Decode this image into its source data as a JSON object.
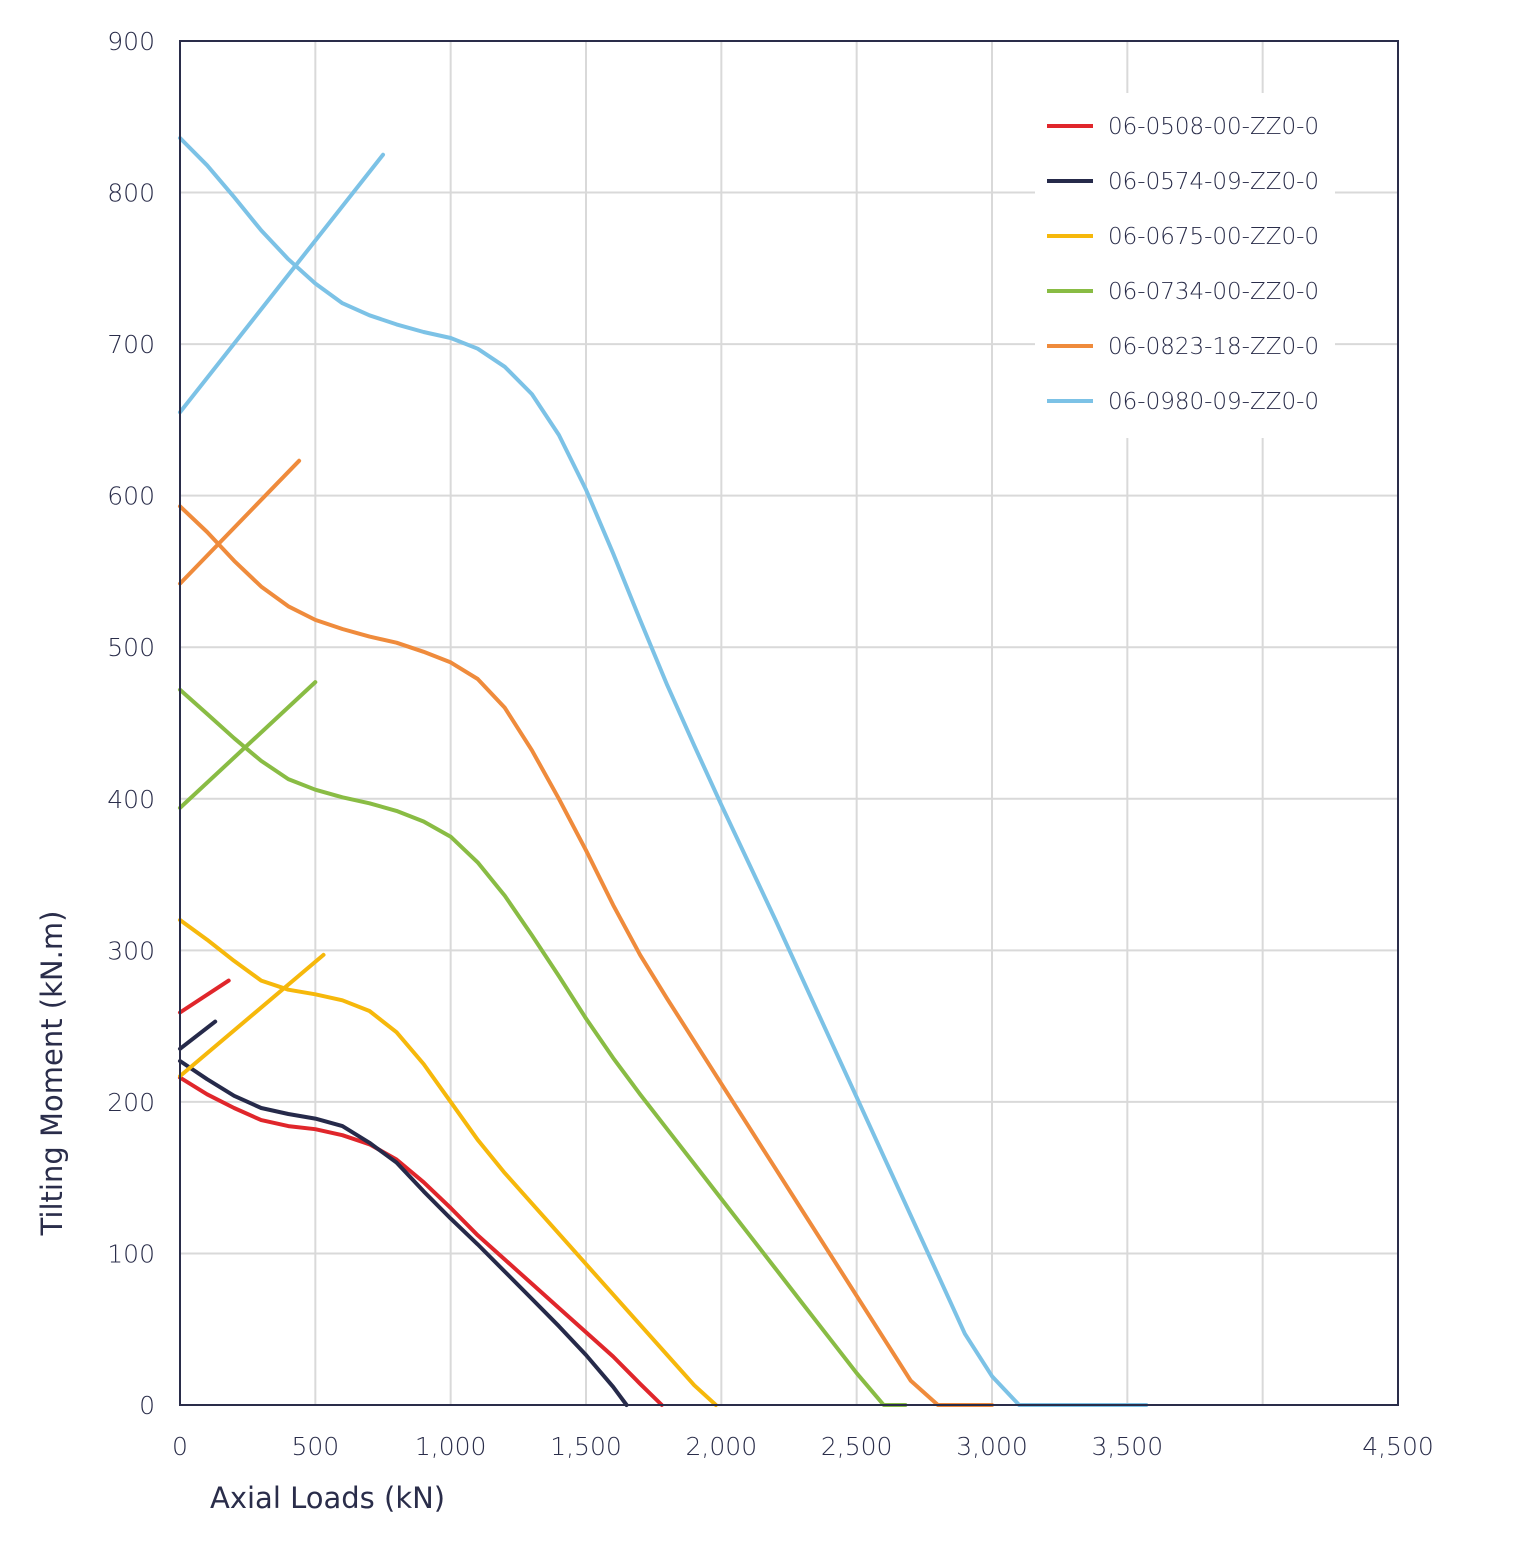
{
  "chart_data": {
    "type": "line",
    "title": "",
    "xlabel": "Axial Loads (kN)",
    "ylabel": "Tilting Moment (kN.m)",
    "xlim": [
      0,
      4500
    ],
    "ylim": [
      0,
      900
    ],
    "x_ticks": [
      0,
      500,
      1000,
      1500,
      2000,
      2500,
      3000,
      3500,
      4500
    ],
    "x_tick_labels": [
      "0",
      "500",
      "1,000",
      "1,500",
      "2,000",
      "2,500",
      "3,000",
      "3,500",
      "4,500"
    ],
    "y_ticks": [
      0,
      100,
      200,
      300,
      400,
      500,
      600,
      700,
      800,
      900
    ],
    "y_tick_labels": [
      "0",
      "100",
      "200",
      "300",
      "400",
      "500",
      "600",
      "700",
      "800",
      "900"
    ],
    "grid": true,
    "legend_position": "top-right",
    "series": [
      {
        "name": "06-0508-00-ZZ0-0",
        "color": "#e0262b",
        "curve": [
          [
            0,
            216
          ],
          [
            100,
            205
          ],
          [
            200,
            196
          ],
          [
            300,
            188
          ],
          [
            400,
            184
          ],
          [
            500,
            182
          ],
          [
            600,
            178
          ],
          [
            700,
            172
          ],
          [
            800,
            162
          ],
          [
            900,
            147
          ],
          [
            1000,
            130
          ],
          [
            1100,
            112
          ],
          [
            1200,
            96
          ],
          [
            1300,
            80
          ],
          [
            1400,
            64
          ],
          [
            1500,
            48
          ],
          [
            1600,
            32
          ],
          [
            1700,
            14
          ],
          [
            1780,
            0
          ]
        ],
        "line": [
          [
            0,
            259
          ],
          [
            180,
            280
          ]
        ]
      },
      {
        "name": "06-0574-09-ZZ0-0",
        "color": "#262a4a",
        "curve": [
          [
            0,
            227
          ],
          [
            100,
            215
          ],
          [
            200,
            204
          ],
          [
            300,
            196
          ],
          [
            400,
            192
          ],
          [
            500,
            189
          ],
          [
            600,
            184
          ],
          [
            700,
            173
          ],
          [
            800,
            160
          ],
          [
            900,
            141
          ],
          [
            1000,
            123
          ],
          [
            1100,
            106
          ],
          [
            1200,
            88
          ],
          [
            1300,
            70
          ],
          [
            1400,
            52
          ],
          [
            1500,
            33
          ],
          [
            1600,
            12
          ],
          [
            1650,
            0
          ]
        ],
        "line": [
          [
            0,
            235
          ],
          [
            130,
            253
          ]
        ]
      },
      {
        "name": "06-0675-00-ZZ0-0",
        "color": "#f6b80b",
        "curve": [
          [
            0,
            320
          ],
          [
            100,
            307
          ],
          [
            200,
            293
          ],
          [
            300,
            280
          ],
          [
            400,
            274
          ],
          [
            500,
            271
          ],
          [
            600,
            267
          ],
          [
            700,
            260
          ],
          [
            800,
            246
          ],
          [
            900,
            225
          ],
          [
            1000,
            200
          ],
          [
            1100,
            175
          ],
          [
            1200,
            153
          ],
          [
            1300,
            133
          ],
          [
            1400,
            113
          ],
          [
            1500,
            93
          ],
          [
            1600,
            73
          ],
          [
            1700,
            53
          ],
          [
            1800,
            33
          ],
          [
            1900,
            13
          ],
          [
            1980,
            0
          ]
        ],
        "line": [
          [
            0,
            217
          ],
          [
            530,
            297
          ]
        ]
      },
      {
        "name": "06-0734-00-ZZ0-0",
        "color": "#89bc44",
        "curve": [
          [
            0,
            472
          ],
          [
            100,
            456
          ],
          [
            200,
            440
          ],
          [
            300,
            425
          ],
          [
            400,
            413
          ],
          [
            500,
            406
          ],
          [
            600,
            401
          ],
          [
            700,
            397
          ],
          [
            800,
            392
          ],
          [
            900,
            385
          ],
          [
            1000,
            375
          ],
          [
            1100,
            358
          ],
          [
            1200,
            336
          ],
          [
            1300,
            310
          ],
          [
            1400,
            283
          ],
          [
            1500,
            255
          ],
          [
            1600,
            229
          ],
          [
            1700,
            205
          ],
          [
            1800,
            182
          ],
          [
            1900,
            159
          ],
          [
            2000,
            136
          ],
          [
            2100,
            113
          ],
          [
            2200,
            90
          ],
          [
            2300,
            67
          ],
          [
            2400,
            44
          ],
          [
            2500,
            21
          ],
          [
            2600,
            0
          ],
          [
            2680,
            0
          ]
        ],
        "line": [
          [
            0,
            394
          ],
          [
            500,
            477
          ]
        ]
      },
      {
        "name": "06-0823-18-ZZ0-0",
        "color": "#ef8b3c",
        "curve": [
          [
            0,
            593
          ],
          [
            100,
            576
          ],
          [
            200,
            557
          ],
          [
            300,
            540
          ],
          [
            400,
            527
          ],
          [
            500,
            518
          ],
          [
            600,
            512
          ],
          [
            700,
            507
          ],
          [
            800,
            503
          ],
          [
            900,
            497
          ],
          [
            1000,
            490
          ],
          [
            1100,
            479
          ],
          [
            1200,
            460
          ],
          [
            1300,
            432
          ],
          [
            1400,
            400
          ],
          [
            1500,
            366
          ],
          [
            1600,
            330
          ],
          [
            1700,
            297
          ],
          [
            1800,
            268
          ],
          [
            1900,
            240
          ],
          [
            2000,
            212
          ],
          [
            2100,
            184
          ],
          [
            2200,
            156
          ],
          [
            2300,
            128
          ],
          [
            2400,
            100
          ],
          [
            2500,
            72
          ],
          [
            2600,
            44
          ],
          [
            2700,
            16
          ],
          [
            2800,
            0
          ],
          [
            3000,
            0
          ]
        ],
        "line": [
          [
            0,
            542
          ],
          [
            440,
            623
          ]
        ]
      },
      {
        "name": "06-0980-09-ZZ0-0",
        "color": "#7cc2e6",
        "curve": [
          [
            0,
            836
          ],
          [
            100,
            818
          ],
          [
            200,
            797
          ],
          [
            300,
            775
          ],
          [
            400,
            756
          ],
          [
            500,
            740
          ],
          [
            600,
            727
          ],
          [
            700,
            719
          ],
          [
            800,
            713
          ],
          [
            900,
            708
          ],
          [
            1000,
            704
          ],
          [
            1100,
            697
          ],
          [
            1200,
            685
          ],
          [
            1300,
            667
          ],
          [
            1400,
            640
          ],
          [
            1500,
            604
          ],
          [
            1600,
            562
          ],
          [
            1700,
            518
          ],
          [
            1800,
            475
          ],
          [
            1900,
            435
          ],
          [
            2000,
            396
          ],
          [
            2100,
            358
          ],
          [
            2200,
            320
          ],
          [
            2300,
            281
          ],
          [
            2400,
            242
          ],
          [
            2500,
            203
          ],
          [
            2600,
            164
          ],
          [
            2700,
            125
          ],
          [
            2800,
            86
          ],
          [
            2900,
            47
          ],
          [
            3000,
            19
          ],
          [
            3100,
            0
          ],
          [
            3570,
            0
          ]
        ],
        "line": [
          [
            0,
            655
          ],
          [
            750,
            825
          ]
        ]
      }
    ]
  }
}
